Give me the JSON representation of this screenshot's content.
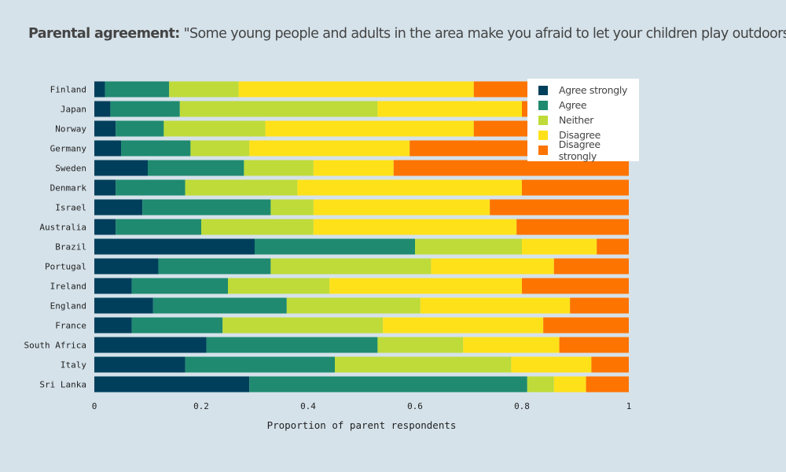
{
  "title": {
    "bold": "Parental agreement:",
    "rest": "\"Some young people and adults in the area make you afraid to let your children play outdoors\""
  },
  "chart_data": {
    "type": "bar",
    "orientation": "horizontal",
    "stacked": true,
    "title": "Parental agreement: \"Some young people and adults in the area make you afraid to let your children play outdoors\"",
    "xlabel": "Proportion of parent respondents",
    "ylabel": "",
    "xlim": [
      0,
      1
    ],
    "xticks": [
      "0",
      "0.2",
      "0.4",
      "0.6",
      "0.8",
      "1"
    ],
    "xtick_values": [
      0,
      0.2,
      0.4,
      0.6,
      0.8,
      1
    ],
    "grid": false,
    "legend_position": "top-right",
    "categories": [
      "Finland",
      "Japan",
      "Norway",
      "Germany",
      "Sweden",
      "Denmark",
      "Israel",
      "Australia",
      "Brazil",
      "Portugal",
      "Ireland",
      "England",
      "France",
      "South Africa",
      "Italy",
      "Sri Lanka"
    ],
    "series": [
      {
        "name": "Agree strongly",
        "color": "#003f5c",
        "values": [
          0.02,
          0.03,
          0.04,
          0.05,
          0.1,
          0.04,
          0.09,
          0.04,
          0.3,
          0.12,
          0.07,
          0.11,
          0.07,
          0.21,
          0.17,
          0.29
        ]
      },
      {
        "name": "Agree",
        "color": "#1f8a70",
        "values": [
          0.12,
          0.13,
          0.09,
          0.13,
          0.18,
          0.13,
          0.24,
          0.16,
          0.3,
          0.21,
          0.18,
          0.25,
          0.17,
          0.32,
          0.28,
          0.52
        ]
      },
      {
        "name": "Neither",
        "color": "#bedb39",
        "values": [
          0.13,
          0.37,
          0.19,
          0.11,
          0.13,
          0.21,
          0.08,
          0.21,
          0.2,
          0.3,
          0.19,
          0.25,
          0.3,
          0.16,
          0.33,
          0.05
        ]
      },
      {
        "name": "Disagree",
        "color": "#ffe11a",
        "values": [
          0.44,
          0.27,
          0.39,
          0.3,
          0.15,
          0.42,
          0.33,
          0.38,
          0.14,
          0.23,
          0.36,
          0.28,
          0.3,
          0.18,
          0.15,
          0.06
        ]
      },
      {
        "name": "Disagree strongly",
        "color": "#fd7400",
        "values": [
          0.29,
          0.2,
          0.29,
          0.41,
          0.44,
          0.2,
          0.26,
          0.21,
          0.06,
          0.14,
          0.2,
          0.11,
          0.16,
          0.13,
          0.07,
          0.08
        ]
      }
    ]
  }
}
